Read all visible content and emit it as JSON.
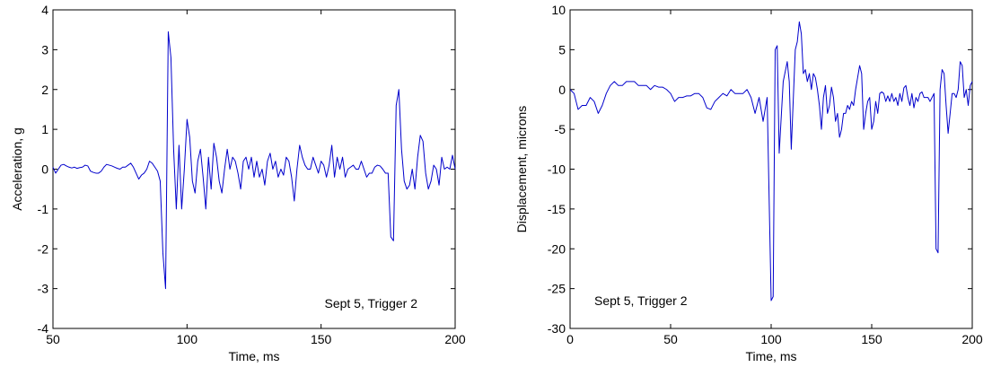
{
  "chart_data": [
    {
      "type": "line",
      "xlabel": "Time, ms",
      "ylabel": "Acceleration, g",
      "annotation": "Sept 5, Trigger 2",
      "xlim": [
        50,
        200
      ],
      "ylim": [
        -4,
        4
      ],
      "xticks": [
        50,
        100,
        150,
        200
      ],
      "yticks": [
        -4,
        -3,
        -2,
        -1,
        0,
        1,
        2,
        3,
        4
      ],
      "grid": false,
      "series": [
        {
          "color": "#0000cc",
          "x": [
            50,
            51,
            52,
            53,
            54,
            55,
            56,
            57,
            58,
            59,
            60,
            61,
            62,
            63,
            64,
            65,
            66,
            67,
            68,
            69,
            70,
            71,
            72,
            73,
            74,
            75,
            76,
            77,
            78,
            79,
            80,
            81,
            82,
            83,
            84,
            85,
            86,
            87,
            88,
            89,
            90,
            91,
            92,
            93,
            94,
            95,
            96,
            97,
            98,
            99,
            100,
            101,
            102,
            103,
            104,
            105,
            106,
            107,
            108,
            109,
            110,
            111,
            112,
            113,
            114,
            115,
            116,
            117,
            118,
            119,
            120,
            121,
            122,
            123,
            124,
            125,
            126,
            127,
            128,
            129,
            130,
            131,
            132,
            133,
            134,
            135,
            136,
            137,
            138,
            139,
            140,
            141,
            142,
            143,
            144,
            145,
            146,
            147,
            148,
            149,
            150,
            151,
            152,
            153,
            154,
            155,
            156,
            157,
            158,
            159,
            160,
            161,
            162,
            163,
            164,
            165,
            166,
            167,
            168,
            169,
            170,
            171,
            172,
            173,
            174,
            175,
            176,
            177,
            178,
            179,
            180,
            181,
            182,
            183,
            184,
            185,
            186,
            187,
            188,
            189,
            190,
            191,
            192,
            193,
            194,
            195,
            196,
            197,
            198,
            199,
            200
          ],
          "y": [
            0.05,
            -0.1,
            0.0,
            0.1,
            0.12,
            0.08,
            0.05,
            0.03,
            0.05,
            0.02,
            0.04,
            0.05,
            0.1,
            0.08,
            -0.05,
            -0.08,
            -0.1,
            -0.1,
            -0.05,
            0.05,
            0.12,
            0.1,
            0.08,
            0.05,
            0.02,
            0.0,
            0.05,
            0.05,
            0.1,
            0.15,
            0.05,
            -0.1,
            -0.25,
            -0.15,
            -0.1,
            0.0,
            0.2,
            0.15,
            0.05,
            -0.05,
            -0.3,
            -2.1,
            -3.0,
            3.45,
            2.8,
            0.5,
            -1.0,
            0.6,
            -1.0,
            0.0,
            1.25,
            0.8,
            -0.3,
            -0.6,
            0.2,
            0.5,
            -0.2,
            -1.0,
            0.3,
            -0.5,
            0.65,
            0.3,
            -0.3,
            -0.6,
            0.0,
            0.5,
            0.0,
            0.3,
            0.2,
            -0.1,
            -0.5,
            0.2,
            0.3,
            0.0,
            0.3,
            -0.2,
            0.2,
            -0.2,
            0.0,
            -0.4,
            0.2,
            0.4,
            0.0,
            0.2,
            -0.2,
            0.0,
            -0.15,
            0.3,
            0.2,
            -0.2,
            -0.8,
            0.0,
            0.6,
            0.3,
            0.1,
            0.0,
            0.0,
            0.3,
            0.1,
            -0.1,
            0.2,
            0.1,
            -0.2,
            0.1,
            0.6,
            -0.2,
            0.3,
            0.0,
            0.3,
            -0.2,
            0.0,
            0.05,
            0.1,
            0.0,
            0.0,
            0.2,
            0.0,
            -0.2,
            -0.1,
            -0.1,
            0.05,
            0.1,
            0.08,
            0.0,
            -0.1,
            -0.1,
            -1.7,
            -1.8,
            1.6,
            2.0,
            0.5,
            -0.3,
            -0.5,
            -0.4,
            0.0,
            -0.5,
            0.3,
            0.85,
            0.7,
            -0.1,
            -0.5,
            -0.3,
            0.1,
            0.0,
            -0.4,
            0.3,
            0.0,
            0.05,
            0.0,
            0.35,
            0.0
          ]
        }
      ]
    },
    {
      "type": "line",
      "xlabel": "Time, ms",
      "ylabel": "Displacement, microns",
      "annotation": "Sept 5, Trigger 2",
      "xlim": [
        0,
        200
      ],
      "ylim": [
        -30,
        10
      ],
      "xticks": [
        0,
        50,
        100,
        150,
        200
      ],
      "yticks": [
        -30,
        -25,
        -20,
        -15,
        -10,
        -5,
        0,
        5,
        10
      ],
      "grid": false,
      "series": [
        {
          "color": "#0000cc",
          "x": [
            0,
            2,
            4,
            6,
            8,
            10,
            12,
            14,
            16,
            18,
            20,
            22,
            24,
            26,
            28,
            30,
            32,
            34,
            36,
            38,
            40,
            42,
            44,
            46,
            48,
            50,
            52,
            54,
            56,
            58,
            60,
            62,
            64,
            66,
            68,
            70,
            72,
            74,
            76,
            78,
            80,
            82,
            84,
            86,
            88,
            90,
            92,
            94,
            96,
            98,
            100,
            101,
            102,
            103,
            104,
            106,
            108,
            109,
            110,
            112,
            113,
            114,
            115,
            116,
            117,
            118,
            119,
            120,
            121,
            122,
            123,
            124,
            125,
            126,
            127,
            128,
            129,
            130,
            131,
            132,
            133,
            134,
            135,
            136,
            137,
            138,
            139,
            140,
            141,
            142,
            143,
            144,
            145,
            146,
            147,
            148,
            149,
            150,
            151,
            152,
            153,
            154,
            155,
            156,
            157,
            158,
            159,
            160,
            161,
            162,
            163,
            164,
            165,
            166,
            167,
            168,
            169,
            170,
            171,
            172,
            173,
            174,
            175,
            176,
            177,
            178,
            179,
            180,
            181,
            182,
            183,
            184,
            185,
            186,
            187,
            188,
            189,
            190,
            191,
            192,
            193,
            194,
            195,
            196,
            197,
            198,
            199,
            200
          ],
          "y": [
            0,
            -0.5,
            -2.5,
            -2,
            -2,
            -1,
            -1.5,
            -3,
            -2,
            -0.5,
            0.5,
            1,
            0.5,
            0.5,
            1,
            1,
            1,
            0.5,
            0.5,
            0.5,
            0,
            0.5,
            0.3,
            0.3,
            0,
            -0.5,
            -1.5,
            -1,
            -1,
            -0.8,
            -0.8,
            -0.5,
            -0.5,
            -1,
            -2.3,
            -2.5,
            -1.5,
            -1,
            -0.5,
            -0.8,
            0,
            -0.5,
            -0.5,
            -0.5,
            0,
            -1,
            -3,
            -1,
            -4,
            -1,
            -26.5,
            -26,
            5,
            5.5,
            -8,
            1,
            3.5,
            1,
            -7.5,
            5,
            6,
            8.5,
            7,
            2,
            2.5,
            1,
            2,
            0,
            2,
            1.5,
            0,
            -2,
            -5,
            -1,
            0.5,
            -3,
            -2,
            0.3,
            -1,
            -4,
            -3,
            -6,
            -5,
            -3,
            -3,
            -2,
            -2.5,
            -1.5,
            -2,
            0,
            1.5,
            3,
            2,
            -5,
            -3,
            -1.5,
            -1,
            -5,
            -4,
            -1.5,
            -3,
            -0.5,
            -0.3,
            -0.5,
            -1.5,
            -0.8,
            -1.5,
            -0.5,
            -1.5,
            -1,
            -2,
            -0.5,
            -1.5,
            0.2,
            0.5,
            -1,
            -2,
            -0.5,
            -2.3,
            -1,
            -1.5,
            -0.5,
            -0.3,
            -1,
            -1,
            -1,
            -1.5,
            -1,
            -0.5,
            -20,
            -20.5,
            0,
            2.5,
            2,
            -2,
            -5.5,
            -3,
            -0.5,
            -0.5,
            -1,
            0,
            3.5,
            3,
            -1,
            0,
            -2,
            0.5,
            1
          ]
        }
      ]
    }
  ]
}
